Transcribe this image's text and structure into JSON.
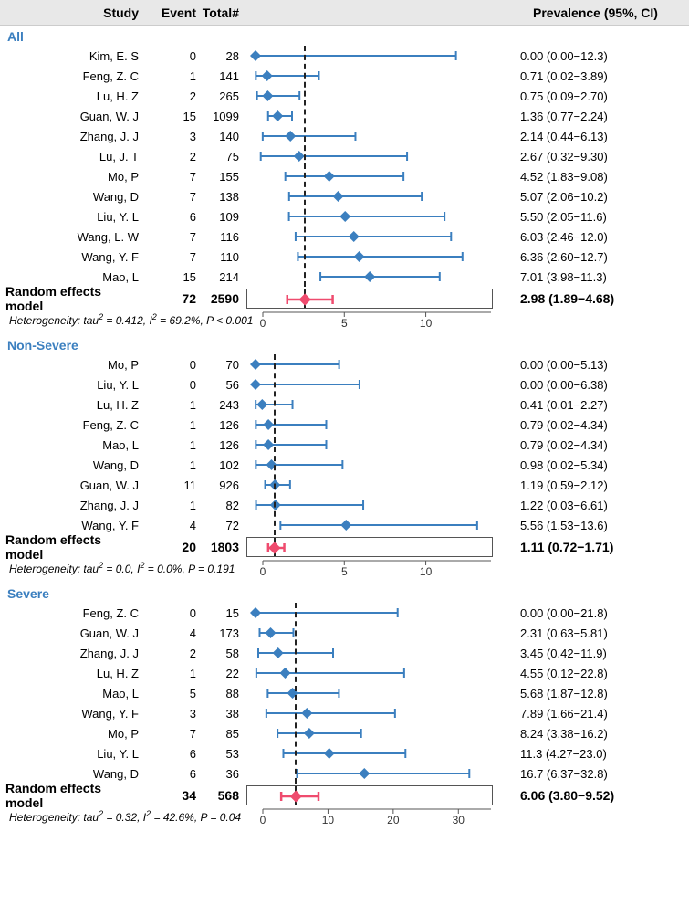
{
  "header": {
    "study": "Study",
    "event": "Event",
    "total": "Total#",
    "prev": "Prevalence (95%, CI)"
  },
  "style": {
    "study_color": "#3b7fbf",
    "line_color": "#3b7fbf",
    "marker_color": "#3b7fbf",
    "summary_color": "#ef4b6e",
    "ref_line_color": "#222222",
    "axis_color": "#555555",
    "tick_fontsize": 12,
    "marker_size": 9,
    "summary_marker_size": 10,
    "whisker_tick": 5
  },
  "groups": [
    {
      "title": "All",
      "xmax": 14,
      "ticks": [
        0,
        5,
        10
      ],
      "ref": 2.98,
      "rows": [
        {
          "study": "Kim, E. S",
          "event": 0,
          "total": 28,
          "pe": 0,
          "lo": 0,
          "hi": 12.3,
          "label": "0.00 (0.00−12.3)"
        },
        {
          "study": "Feng, Z. C",
          "event": 1,
          "total": 141,
          "pe": 0.71,
          "lo": 0.02,
          "hi": 3.89,
          "label": "0.71 (0.02−3.89)"
        },
        {
          "study": "Lu, H. Z",
          "event": 2,
          "total": 265,
          "pe": 0.75,
          "lo": 0.09,
          "hi": 2.7,
          "label": "0.75 (0.09−2.70)"
        },
        {
          "study": "Guan, W. J",
          "event": 15,
          "total": 1099,
          "pe": 1.36,
          "lo": 0.77,
          "hi": 2.24,
          "label": "1.36 (0.77−2.24)"
        },
        {
          "study": "Zhang, J. J",
          "event": 3,
          "total": 140,
          "pe": 2.14,
          "lo": 0.44,
          "hi": 6.13,
          "label": "2.14 (0.44−6.13)"
        },
        {
          "study": "Lu, J. T",
          "event": 2,
          "total": 75,
          "pe": 2.67,
          "lo": 0.32,
          "hi": 9.3,
          "label": "2.67 (0.32−9.30)"
        },
        {
          "study": "Mo, P",
          "event": 7,
          "total": 155,
          "pe": 4.52,
          "lo": 1.83,
          "hi": 9.08,
          "label": "4.52 (1.83−9.08)"
        },
        {
          "study": "Wang, D",
          "event": 7,
          "total": 138,
          "pe": 5.07,
          "lo": 2.06,
          "hi": 10.2,
          "label": "5.07 (2.06−10.2)"
        },
        {
          "study": "Liu, Y. L",
          "event": 6,
          "total": 109,
          "pe": 5.5,
          "lo": 2.05,
          "hi": 11.6,
          "label": "5.50 (2.05−11.6)"
        },
        {
          "study": "Wang, L. W",
          "event": 7,
          "total": 116,
          "pe": 6.03,
          "lo": 2.46,
          "hi": 12.0,
          "label": "6.03 (2.46−12.0)"
        },
        {
          "study": "Wang, Y. F",
          "event": 7,
          "total": 110,
          "pe": 6.36,
          "lo": 2.6,
          "hi": 12.7,
          "label": "6.36 (2.60−12.7)"
        },
        {
          "study": "Mao, L",
          "event": 15,
          "total": 214,
          "pe": 7.01,
          "lo": 3.98,
          "hi": 11.3,
          "label": "7.01 (3.98−11.3)"
        }
      ],
      "summary": {
        "label": "Random effects model",
        "event": 72,
        "total": 2590,
        "pe": 2.98,
        "lo": 1.89,
        "hi": 4.68,
        "text": "2.98 (1.89−4.68)"
      },
      "heterogeneity_html": "Heterogeneity: tau<sup>2</sup> = 0.412, I<sup>2</sup> = 69.2%, P < 0.001"
    },
    {
      "title": "Non-Severe",
      "xmax": 14,
      "ticks": [
        0,
        5,
        10
      ],
      "ref": 1.11,
      "rows": [
        {
          "study": "Mo, P",
          "event": 0,
          "total": 70,
          "pe": 0,
          "lo": 0,
          "hi": 5.13,
          "label": "0.00 (0.00−5.13)"
        },
        {
          "study": "Liu, Y. L",
          "event": 0,
          "total": 56,
          "pe": 0,
          "lo": 0,
          "hi": 6.38,
          "label": "0.00 (0.00−6.38)"
        },
        {
          "study": "Lu, H. Z",
          "event": 1,
          "total": 243,
          "pe": 0.41,
          "lo": 0.01,
          "hi": 2.27,
          "label": "0.41 (0.01−2.27)"
        },
        {
          "study": "Feng, Z. C",
          "event": 1,
          "total": 126,
          "pe": 0.79,
          "lo": 0.02,
          "hi": 4.34,
          "label": "0.79 (0.02−4.34)"
        },
        {
          "study": "Mao, L",
          "event": 1,
          "total": 126,
          "pe": 0.79,
          "lo": 0.02,
          "hi": 4.34,
          "label": "0.79 (0.02−4.34)"
        },
        {
          "study": "Wang, D",
          "event": 1,
          "total": 102,
          "pe": 0.98,
          "lo": 0.02,
          "hi": 5.34,
          "label": "0.98 (0.02−5.34)"
        },
        {
          "study": "Guan, W. J",
          "event": 11,
          "total": 926,
          "pe": 1.19,
          "lo": 0.59,
          "hi": 2.12,
          "label": "1.19 (0.59−2.12)"
        },
        {
          "study": "Zhang, J. J",
          "event": 1,
          "total": 82,
          "pe": 1.22,
          "lo": 0.03,
          "hi": 6.61,
          "label": "1.22 (0.03−6.61)"
        },
        {
          "study": "Wang, Y. F",
          "event": 4,
          "total": 72,
          "pe": 5.56,
          "lo": 1.53,
          "hi": 13.6,
          "label": "5.56 (1.53−13.6)"
        }
      ],
      "summary": {
        "label": "Random effects model",
        "event": 20,
        "total": 1803,
        "pe": 1.11,
        "lo": 0.72,
        "hi": 1.71,
        "text": "1.11 (0.72−1.71)"
      },
      "heterogeneity_html": "Heterogeneity: tau<sup>2</sup> = 0.0, I<sup>2</sup> = 0.0%, P = 0.191"
    },
    {
      "title": "Severe",
      "xmax": 35,
      "ticks": [
        0,
        10,
        20,
        30
      ],
      "ref": 6.06,
      "rows": [
        {
          "study": "Feng, Z. C",
          "event": 0,
          "total": 15,
          "pe": 0,
          "lo": 0,
          "hi": 21.8,
          "label": "0.00 (0.00−21.8)"
        },
        {
          "study": "Guan, W. J",
          "event": 4,
          "total": 173,
          "pe": 2.31,
          "lo": 0.63,
          "hi": 5.81,
          "label": "2.31 (0.63−5.81)"
        },
        {
          "study": "Zhang, J. J",
          "event": 2,
          "total": 58,
          "pe": 3.45,
          "lo": 0.42,
          "hi": 11.9,
          "label": "3.45 (0.42−11.9)"
        },
        {
          "study": "Lu, H. Z",
          "event": 1,
          "total": 22,
          "pe": 4.55,
          "lo": 0.12,
          "hi": 22.8,
          "label": "4.55 (0.12−22.8)"
        },
        {
          "study": "Mao, L",
          "event": 5,
          "total": 88,
          "pe": 5.68,
          "lo": 1.87,
          "hi": 12.8,
          "label": "5.68 (1.87−12.8)"
        },
        {
          "study": "Wang, Y. F",
          "event": 3,
          "total": 38,
          "pe": 7.89,
          "lo": 1.66,
          "hi": 21.4,
          "label": "7.89 (1.66−21.4)"
        },
        {
          "study": "Mo, P",
          "event": 7,
          "total": 85,
          "pe": 8.24,
          "lo": 3.38,
          "hi": 16.2,
          "label": "8.24 (3.38−16.2)"
        },
        {
          "study": "Liu, Y. L",
          "event": 6,
          "total": 53,
          "pe": 11.3,
          "lo": 4.27,
          "hi": 23.0,
          "label": "11.3 (4.27−23.0)"
        },
        {
          "study": "Wang, D",
          "event": 6,
          "total": 36,
          "pe": 16.7,
          "lo": 6.37,
          "hi": 32.8,
          "label": "16.7 (6.37−32.8)"
        }
      ],
      "summary": {
        "label": "Random effects model",
        "event": 34,
        "total": 568,
        "pe": 6.06,
        "lo": 3.8,
        "hi": 9.52,
        "text": "6.06 (3.80−9.52)"
      },
      "heterogeneity_html": "Heterogeneity: tau<sup>2</sup> = 0.32, I<sup>2</sup> = 42.6%, P = 0.04"
    }
  ]
}
